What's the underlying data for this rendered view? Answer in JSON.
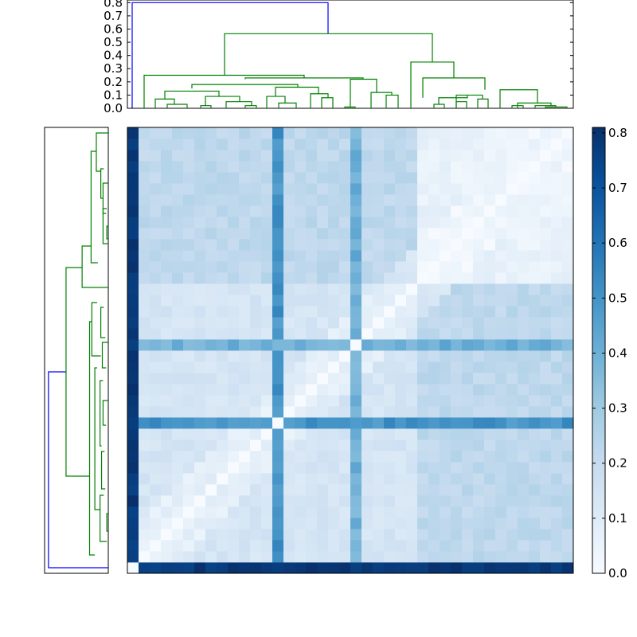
{
  "chart_data": [
    {
      "type": "heatmap",
      "description_colorscale": "Blues",
      "matrix_size": 40,
      "value_range": [
        0.0,
        0.81
      ],
      "colors": {
        "low": "#f7fbff",
        "mid": "#6baed6",
        "high": "#08306b"
      },
      "colorbar": {
        "ticks": [
          "0.0",
          "0.1",
          "0.2",
          "0.3",
          "0.4",
          "0.5",
          "0.6",
          "0.7",
          "0.8"
        ],
        "tick_values": [
          0.0,
          0.1,
          0.2,
          0.3,
          0.4,
          0.5,
          0.6,
          0.7,
          0.8
        ]
      },
      "outlier_index": 0,
      "outlier_distance": 0.78,
      "cluster_a": {
        "range": [
          1,
          25
        ],
        "within": 0.14,
        "to_b": 0.22
      },
      "cluster_b": {
        "range": [
          26,
          39
        ],
        "within": 0.06
      },
      "special_rows": [
        {
          "index": 13,
          "distance": 0.5
        },
        {
          "index": 20,
          "distance": 0.4
        }
      ]
    },
    {
      "type": "dendrogram",
      "orientation": "top",
      "yticks": [
        "0.0",
        "0.1",
        "0.2",
        "0.3",
        "0.4",
        "0.5",
        "0.6",
        "0.7",
        "0.8"
      ],
      "ylim": [
        0,
        0.82
      ],
      "root_height": 0.8,
      "root_color": "#0000ff",
      "cluster_color": "#008000",
      "main_merge_height": 0.565,
      "subcluster_a_height": 0.25,
      "subcluster_b_height": 0.35
    },
    {
      "type": "dendrogram",
      "orientation": "left",
      "root_height": 0.8,
      "root_color": "#0000ff",
      "cluster_color": "#008000"
    }
  ]
}
